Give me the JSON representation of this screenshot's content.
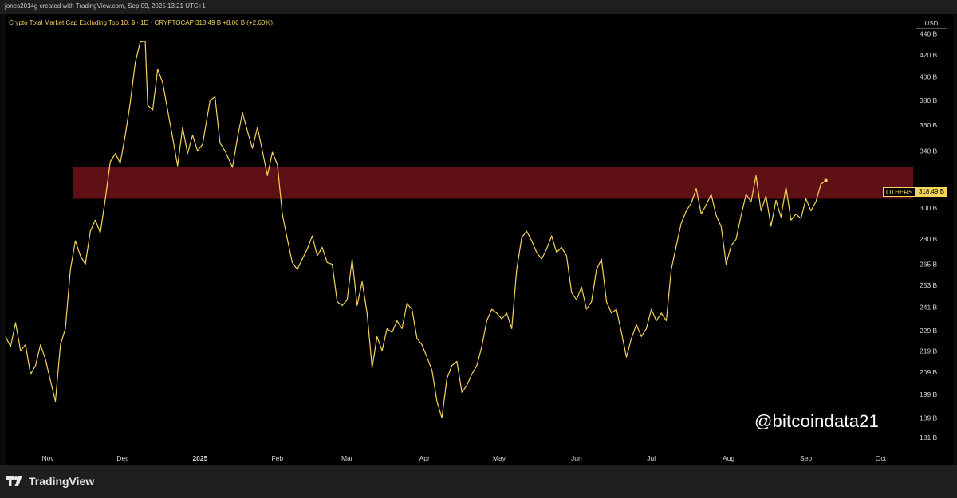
{
  "header": {
    "credit": "jones2014g created with TradingView.com, Sep 09, 2025 13:21 UTC+1"
  },
  "legend": {
    "text": "Crypto Total Market Cap Excluding Top 10, $ · 1D · CRYPTOCAP  318.49 B  +8.06 B (+2.60%)"
  },
  "currency": "USD",
  "watermark": "@bitcoindata21",
  "footer": {
    "brand": "TradingView",
    "logo_icon": "tradingview-logo-icon"
  },
  "colors": {
    "line": "#f4d35e",
    "zone": "#6b1217",
    "background": "#000000"
  },
  "chart_data": {
    "type": "line",
    "title": "Crypto Total Market Cap Excluding Top 10, $ · 1D · CRYPTOCAP",
    "symbol": "OTHERS",
    "last_value_label": "318.49 B",
    "last_value": 318.49,
    "change_label": "+8.06 B (+2.60%)",
    "scale": "log",
    "y_unit": "B USD",
    "ylim": [
      176,
      460
    ],
    "xlim": [
      "2024-10-15",
      "2025-10-14"
    ],
    "y_ticks": [
      {
        "value": 440,
        "label": "440 B"
      },
      {
        "value": 420,
        "label": "420 B"
      },
      {
        "value": 400,
        "label": "400 B"
      },
      {
        "value": 380,
        "label": "380 B"
      },
      {
        "value": 360,
        "label": "360 B"
      },
      {
        "value": 340,
        "label": "340 B"
      },
      {
        "value": 300,
        "label": "300 B"
      },
      {
        "value": 280,
        "label": "280 B"
      },
      {
        "value": 265,
        "label": "265 B"
      },
      {
        "value": 253,
        "label": "253 B"
      },
      {
        "value": 241,
        "label": "241 B"
      },
      {
        "value": 229,
        "label": "229 B"
      },
      {
        "value": 219,
        "label": "219 B"
      },
      {
        "value": 209,
        "label": "209 B"
      },
      {
        "value": 199,
        "label": "199 B"
      },
      {
        "value": 189,
        "label": "189 B"
      },
      {
        "value": 181,
        "label": "181 B"
      }
    ],
    "x_ticks": [
      {
        "date": "2024-11-01",
        "label": "Nov"
      },
      {
        "date": "2024-12-01",
        "label": "Dec"
      },
      {
        "date": "2025-01-01",
        "label": "2025"
      },
      {
        "date": "2025-02-01",
        "label": "Feb"
      },
      {
        "date": "2025-03-01",
        "label": "Mar"
      },
      {
        "date": "2025-04-01",
        "label": "Apr"
      },
      {
        "date": "2025-05-01",
        "label": "May"
      },
      {
        "date": "2025-06-01",
        "label": "Jun"
      },
      {
        "date": "2025-07-01",
        "label": "Jul"
      },
      {
        "date": "2025-08-01",
        "label": "Aug"
      },
      {
        "date": "2025-09-01",
        "label": "Sep"
      },
      {
        "date": "2025-10-01",
        "label": "Oct"
      }
    ],
    "zone": {
      "from_date": "2024-11-11",
      "to_date": "2025-10-14",
      "low": 306,
      "high": 328
    },
    "series": [
      {
        "values": [
          [
            "2024-10-15",
            226
          ],
          [
            "2024-10-17",
            221
          ],
          [
            "2024-10-19",
            233
          ],
          [
            "2024-10-21",
            219
          ],
          [
            "2024-10-23",
            222
          ],
          [
            "2024-10-25",
            208
          ],
          [
            "2024-10-27",
            212
          ],
          [
            "2024-10-29",
            222
          ],
          [
            "2024-10-31",
            215
          ],
          [
            "2024-11-02",
            205
          ],
          [
            "2024-11-04",
            196
          ],
          [
            "2024-11-06",
            222
          ],
          [
            "2024-11-08",
            230
          ],
          [
            "2024-11-10",
            262
          ],
          [
            "2024-11-12",
            279
          ],
          [
            "2024-11-14",
            270
          ],
          [
            "2024-11-16",
            265
          ],
          [
            "2024-11-18",
            285
          ],
          [
            "2024-11-20",
            292
          ],
          [
            "2024-11-22",
            284
          ],
          [
            "2024-11-24",
            306
          ],
          [
            "2024-11-26",
            332
          ],
          [
            "2024-11-28",
            338
          ],
          [
            "2024-11-30",
            331
          ],
          [
            "2024-12-02",
            352
          ],
          [
            "2024-12-04",
            378
          ],
          [
            "2024-12-06",
            413
          ],
          [
            "2024-12-08",
            432
          ],
          [
            "2024-12-10",
            433
          ],
          [
            "2024-12-11",
            376
          ],
          [
            "2024-12-13",
            372
          ],
          [
            "2024-12-15",
            407
          ],
          [
            "2024-12-17",
            395
          ],
          [
            "2024-12-19",
            372
          ],
          [
            "2024-12-21",
            350
          ],
          [
            "2024-12-23",
            329
          ],
          [
            "2024-12-25",
            358
          ],
          [
            "2024-12-27",
            338
          ],
          [
            "2024-12-29",
            352
          ],
          [
            "2024-12-31",
            340
          ],
          [
            "2025-01-02",
            345
          ],
          [
            "2025-01-05",
            380
          ],
          [
            "2025-01-07",
            383
          ],
          [
            "2025-01-09",
            346
          ],
          [
            "2025-01-11",
            340
          ],
          [
            "2025-01-14",
            328
          ],
          [
            "2025-01-16",
            350
          ],
          [
            "2025-01-18",
            370
          ],
          [
            "2025-01-20",
            355
          ],
          [
            "2025-01-22",
            342
          ],
          [
            "2025-01-24",
            358
          ],
          [
            "2025-01-26",
            340
          ],
          [
            "2025-01-28",
            322
          ],
          [
            "2025-01-30",
            339
          ],
          [
            "2025-02-01",
            330
          ],
          [
            "2025-02-03",
            296
          ],
          [
            "2025-02-05",
            280
          ],
          [
            "2025-02-07",
            266
          ],
          [
            "2025-02-09",
            262
          ],
          [
            "2025-02-11",
            268
          ],
          [
            "2025-02-13",
            274
          ],
          [
            "2025-02-15",
            282
          ],
          [
            "2025-02-17",
            270
          ],
          [
            "2025-02-19",
            275
          ],
          [
            "2025-02-21",
            266
          ],
          [
            "2025-02-23",
            265
          ],
          [
            "2025-02-25",
            244
          ],
          [
            "2025-02-27",
            242
          ],
          [
            "2025-03-01",
            245
          ],
          [
            "2025-03-03",
            268
          ],
          [
            "2025-03-05",
            242
          ],
          [
            "2025-03-07",
            255
          ],
          [
            "2025-03-09",
            238
          ],
          [
            "2025-03-11",
            211
          ],
          [
            "2025-03-13",
            226
          ],
          [
            "2025-03-15",
            219
          ],
          [
            "2025-03-17",
            230
          ],
          [
            "2025-03-19",
            228
          ],
          [
            "2025-03-21",
            234
          ],
          [
            "2025-03-23",
            230
          ],
          [
            "2025-03-25",
            243
          ],
          [
            "2025-03-27",
            240
          ],
          [
            "2025-03-29",
            225
          ],
          [
            "2025-03-31",
            222
          ],
          [
            "2025-04-02",
            216
          ],
          [
            "2025-04-04",
            210
          ],
          [
            "2025-04-06",
            196
          ],
          [
            "2025-04-08",
            189
          ],
          [
            "2025-04-10",
            206
          ],
          [
            "2025-04-12",
            212
          ],
          [
            "2025-04-14",
            214
          ],
          [
            "2025-04-16",
            200
          ],
          [
            "2025-04-18",
            203
          ],
          [
            "2025-04-20",
            208
          ],
          [
            "2025-04-22",
            212
          ],
          [
            "2025-04-24",
            221
          ],
          [
            "2025-04-26",
            234
          ],
          [
            "2025-04-28",
            240
          ],
          [
            "2025-04-30",
            238
          ],
          [
            "2025-05-02",
            235
          ],
          [
            "2025-05-04",
            238
          ],
          [
            "2025-05-06",
            230
          ],
          [
            "2025-05-08",
            262
          ],
          [
            "2025-05-10",
            281
          ],
          [
            "2025-05-12",
            285
          ],
          [
            "2025-05-14",
            279
          ],
          [
            "2025-05-16",
            272
          ],
          [
            "2025-05-18",
            268
          ],
          [
            "2025-05-20",
            274
          ],
          [
            "2025-05-22",
            282
          ],
          [
            "2025-05-24",
            272
          ],
          [
            "2025-05-26",
            275
          ],
          [
            "2025-05-28",
            270
          ],
          [
            "2025-05-30",
            249
          ],
          [
            "2025-06-01",
            245
          ],
          [
            "2025-06-03",
            252
          ],
          [
            "2025-06-05",
            240
          ],
          [
            "2025-06-07",
            244
          ],
          [
            "2025-06-09",
            262
          ],
          [
            "2025-06-11",
            268
          ],
          [
            "2025-06-13",
            244
          ],
          [
            "2025-06-15",
            238
          ],
          [
            "2025-06-17",
            240
          ],
          [
            "2025-06-19",
            228
          ],
          [
            "2025-06-21",
            216
          ],
          [
            "2025-06-23",
            225
          ],
          [
            "2025-06-25",
            232
          ],
          [
            "2025-06-27",
            226
          ],
          [
            "2025-06-29",
            230
          ],
          [
            "2025-07-01",
            240
          ],
          [
            "2025-07-03",
            234
          ],
          [
            "2025-07-05",
            238
          ],
          [
            "2025-07-07",
            234
          ],
          [
            "2025-07-09",
            262
          ],
          [
            "2025-07-11",
            276
          ],
          [
            "2025-07-13",
            290
          ],
          [
            "2025-07-15",
            298
          ],
          [
            "2025-07-17",
            303
          ],
          [
            "2025-07-19",
            313
          ],
          [
            "2025-07-21",
            296
          ],
          [
            "2025-07-23",
            302
          ],
          [
            "2025-07-25",
            309
          ],
          [
            "2025-07-27",
            295
          ],
          [
            "2025-07-29",
            288
          ],
          [
            "2025-07-31",
            265
          ],
          [
            "2025-08-02",
            276
          ],
          [
            "2025-08-04",
            280
          ],
          [
            "2025-08-06",
            295
          ],
          [
            "2025-08-08",
            309
          ],
          [
            "2025-08-10",
            304
          ],
          [
            "2025-08-12",
            322
          ],
          [
            "2025-08-14",
            298
          ],
          [
            "2025-08-16",
            308
          ],
          [
            "2025-08-18",
            288
          ],
          [
            "2025-08-20",
            305
          ],
          [
            "2025-08-22",
            294
          ],
          [
            "2025-08-24",
            314
          ],
          [
            "2025-08-26",
            292
          ],
          [
            "2025-08-28",
            296
          ],
          [
            "2025-08-30",
            293
          ],
          [
            "2025-09-01",
            306
          ],
          [
            "2025-09-03",
            298
          ],
          [
            "2025-09-05",
            304
          ],
          [
            "2025-09-07",
            316
          ],
          [
            "2025-09-09",
            318.49
          ]
        ]
      }
    ]
  }
}
